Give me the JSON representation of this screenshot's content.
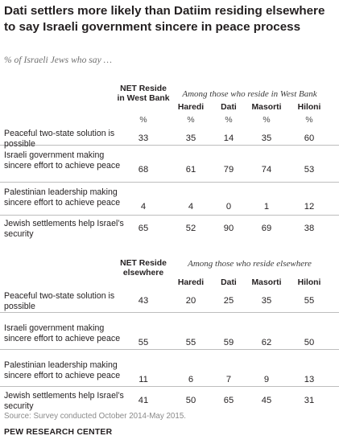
{
  "title": "Dati settlers more likely than Datiim residing elsewhere to say Israeli government sincere in peace process",
  "subtitle": "% of Israeli Jews who say …",
  "source": "Source: Survey conducted October 2014-May 2015.",
  "logo": "PEW RESEARCH CENTER",
  "chart_data": [
    {
      "type": "table",
      "net_header": "NET Reside in West Bank",
      "group_label": "Among those who reside in West Bank",
      "columns": [
        "Haredi",
        "Dati",
        "Masorti",
        "Hiloni"
      ],
      "percent_sign": "%",
      "rows": [
        {
          "label": "Peaceful two-state solution is possible",
          "values": [
            33,
            35,
            14,
            35,
            60
          ]
        },
        {
          "label": "Israeli government making sincere effort to achieve peace",
          "values": [
            68,
            61,
            79,
            74,
            53
          ]
        },
        {
          "label": "Palestinian leadership making sincere effort to achieve peace",
          "values": [
            4,
            4,
            0,
            1,
            12
          ]
        },
        {
          "label": "Jewish settlements help Israel’s security",
          "values": [
            65,
            52,
            90,
            69,
            38
          ]
        }
      ]
    },
    {
      "type": "table",
      "net_header": "NET Reside elsewhere",
      "group_label": "Among those who reside elsewhere",
      "columns": [
        "Haredi",
        "Dati",
        "Masorti",
        "Hiloni"
      ],
      "rows": [
        {
          "label": "Peaceful two-state solution is possible",
          "values": [
            43,
            20,
            25,
            35,
            55
          ]
        },
        {
          "label": "Israeli government making sincere effort to achieve peace",
          "values": [
            55,
            55,
            59,
            62,
            50
          ]
        },
        {
          "label": "Palestinian leadership making sincere effort to achieve peace",
          "values": [
            11,
            6,
            7,
            9,
            13
          ]
        },
        {
          "label": "Jewish settlements help Israel’s security",
          "values": [
            41,
            50,
            65,
            45,
            31
          ]
        }
      ]
    }
  ]
}
